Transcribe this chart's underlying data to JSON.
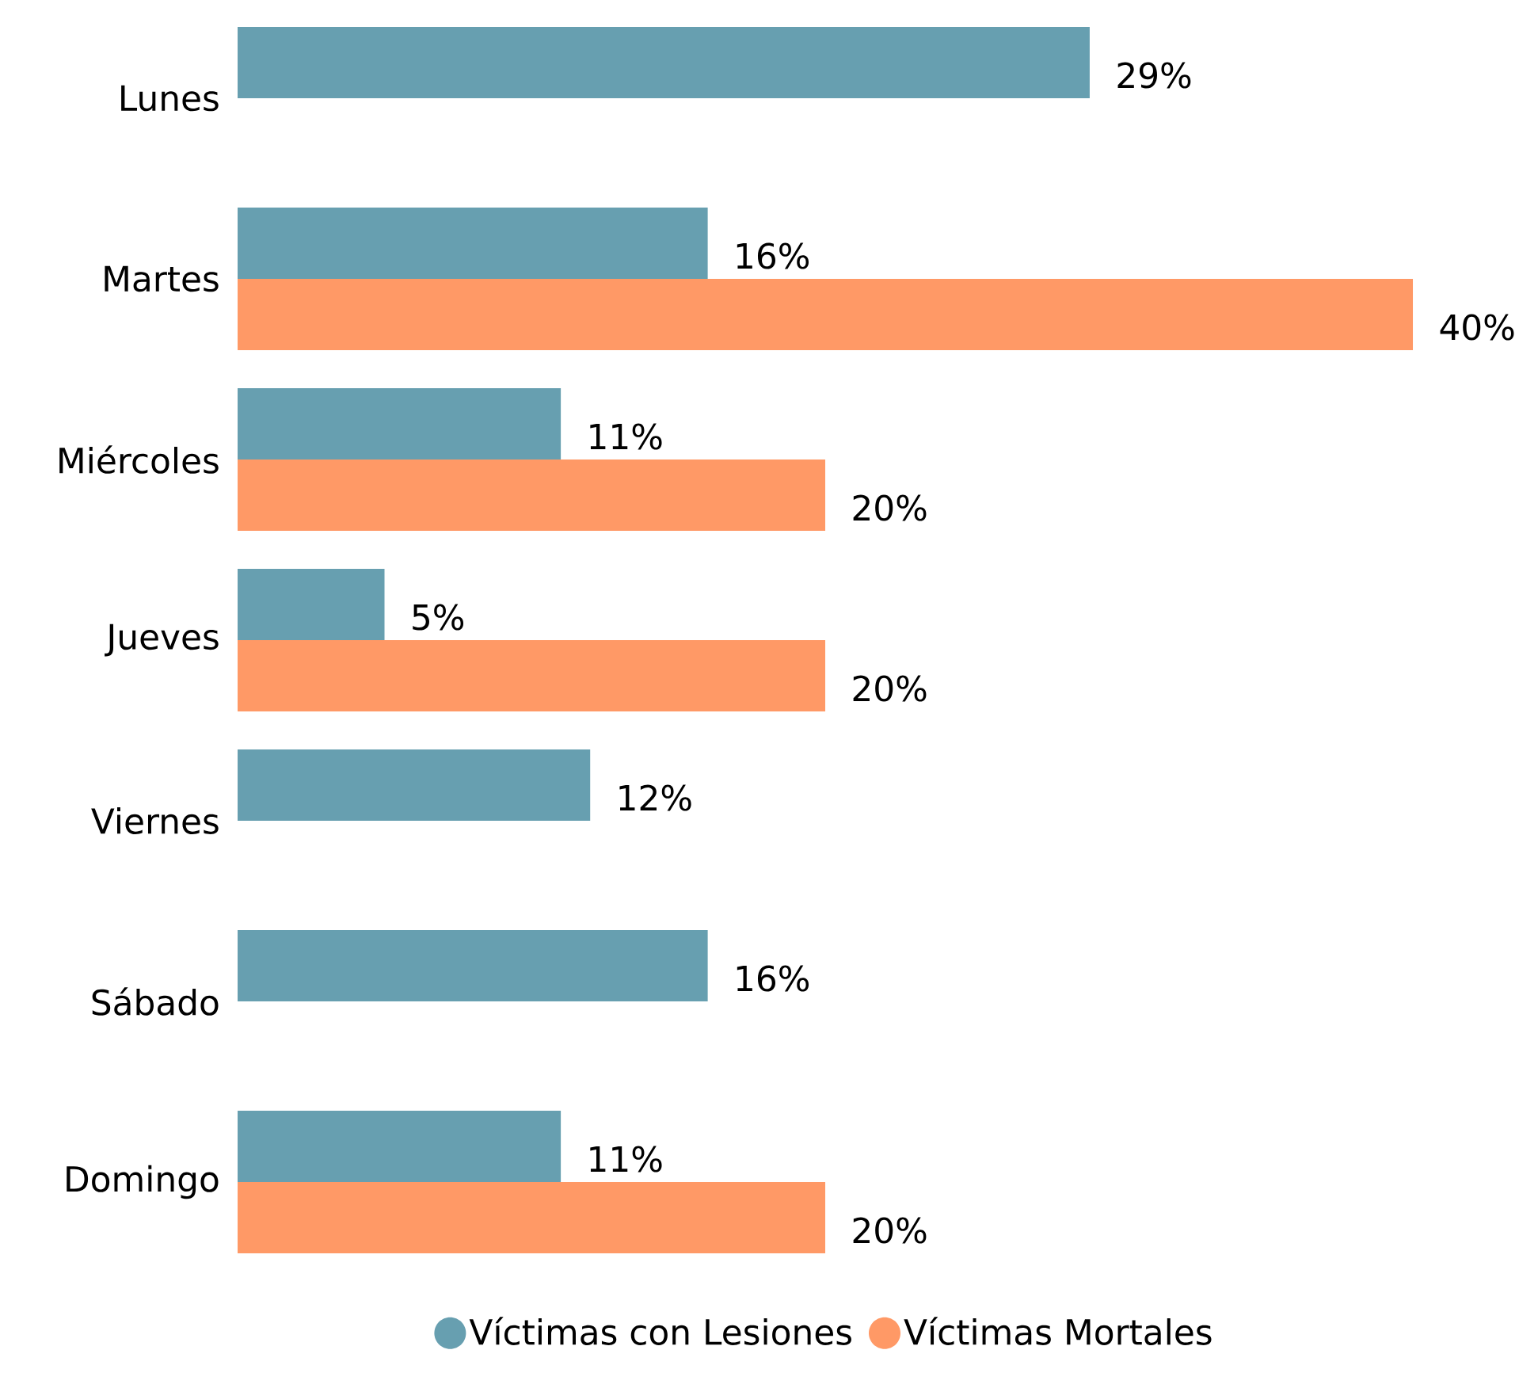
{
  "chart_data": {
    "type": "bar",
    "orientation": "horizontal",
    "categories": [
      "Lunes",
      "Martes",
      "Miércoles",
      "Jueves",
      "Viernes",
      "Sábado",
      "Domingo"
    ],
    "series": [
      {
        "name": "Víctimas con Lesiones",
        "color": "#679fb0",
        "values": [
          29,
          16,
          11,
          5,
          12,
          16,
          11
        ],
        "value_labels": [
          "29%",
          "16%",
          "11%",
          "5%",
          "12%",
          "16%",
          "11%"
        ]
      },
      {
        "name": "Víctimas Mortales",
        "color": "#ff9966",
        "values": [
          null,
          40,
          20,
          20,
          null,
          null,
          20
        ],
        "value_labels": [
          null,
          "40%",
          "20%",
          "20%",
          null,
          null,
          "20%"
        ]
      }
    ],
    "legend": "bottom"
  }
}
